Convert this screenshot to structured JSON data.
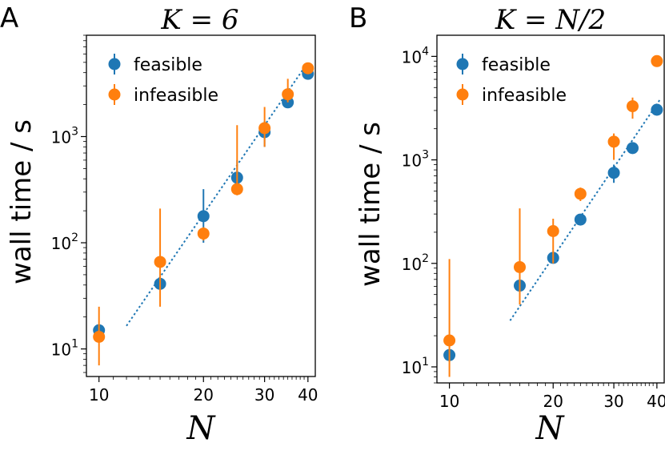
{
  "chart_data": [
    {
      "type": "scatter",
      "panel_letter": "A",
      "title": "K = 6",
      "xlabel": "N",
      "ylabel": "wall time / s",
      "xscale": "log",
      "yscale": "log",
      "xlim": [
        9.2,
        42
      ],
      "ylim": [
        5.5,
        9000
      ],
      "x_ticks": [
        10,
        20,
        30,
        40
      ],
      "y_ticks": [
        {
          "value": 10,
          "base": "10",
          "exp": "1"
        },
        {
          "value": 100,
          "base": "10",
          "exp": "2"
        },
        {
          "value": 1000,
          "base": "10",
          "exp": "3"
        }
      ],
      "legend": "top-left",
      "fit_line": {
        "x": [
          12,
          40
        ],
        "y": [
          16.5,
          5000
        ],
        "color": "#1f77b4",
        "style": "dotted"
      },
      "series": [
        {
          "name": "feasible",
          "color": "#1f77b4",
          "points": [
            {
              "x": 10,
              "y": 15,
              "lo": 13,
              "hi": 17
            },
            {
              "x": 15,
              "y": 41,
              "lo": 38,
              "hi": 44
            },
            {
              "x": 20,
              "y": 178,
              "lo": 100,
              "hi": 320
            },
            {
              "x": 25,
              "y": 410,
              "lo": 300,
              "hi": 600
            },
            {
              "x": 30,
              "y": 1100,
              "lo": 800,
              "hi": 1400
            },
            {
              "x": 35,
              "y": 2100,
              "lo": 1900,
              "hi": 2400
            },
            {
              "x": 40,
              "y": 3900,
              "lo": 3500,
              "hi": 4300
            }
          ]
        },
        {
          "name": "infeasible",
          "color": "#ff7f0e",
          "points": [
            {
              "x": 10,
              "y": 13,
              "lo": 7,
              "hi": 25
            },
            {
              "x": 15,
              "y": 66,
              "lo": 25,
              "hi": 210
            },
            {
              "x": 20,
              "y": 122,
              "lo": 105,
              "hi": 140
            },
            {
              "x": 25,
              "y": 320,
              "lo": 280,
              "hi": 1280
            },
            {
              "x": 30,
              "y": 1200,
              "lo": 800,
              "hi": 1900
            },
            {
              "x": 35,
              "y": 2500,
              "lo": 2100,
              "hi": 3500
            },
            {
              "x": 40,
              "y": 4400,
              "lo": 4000,
              "hi": 4900
            }
          ]
        }
      ]
    },
    {
      "type": "scatter",
      "panel_letter": "B",
      "title": "K = N/2",
      "xlabel": "N",
      "ylabel": "wall time / s",
      "xscale": "log",
      "yscale": "log",
      "xlim": [
        9.2,
        42
      ],
      "ylim": [
        7,
        16000
      ],
      "x_ticks": [
        10,
        20,
        30,
        40
      ],
      "y_ticks": [
        {
          "value": 10,
          "base": "10",
          "exp": "1"
        },
        {
          "value": 100,
          "base": "10",
          "exp": "2"
        },
        {
          "value": 1000,
          "base": "10",
          "exp": "3"
        },
        {
          "value": 10000,
          "base": "10",
          "exp": "4"
        }
      ],
      "legend": "top-left",
      "fit_line": {
        "x": [
          15,
          41
        ],
        "y": [
          28,
          3900
        ],
        "color": "#1f77b4",
        "style": "dotted"
      },
      "series": [
        {
          "name": "feasible",
          "color": "#1f77b4",
          "points": [
            {
              "x": 10,
              "y": 13,
              "lo": 12,
              "hi": 14
            },
            {
              "x": 16,
              "y": 61,
              "lo": 55,
              "hi": 68
            },
            {
              "x": 20,
              "y": 113,
              "lo": 100,
              "hi": 125
            },
            {
              "x": 24,
              "y": 265,
              "lo": 240,
              "hi": 290
            },
            {
              "x": 30,
              "y": 750,
              "lo": 600,
              "hi": 900
            },
            {
              "x": 34,
              "y": 1300,
              "lo": 1150,
              "hi": 1450
            },
            {
              "x": 40,
              "y": 3050,
              "lo": 2800,
              "hi": 3300
            }
          ]
        },
        {
          "name": "infeasible",
          "color": "#ff7f0e",
          "points": [
            {
              "x": 10,
              "y": 18,
              "lo": 8,
              "hi": 110
            },
            {
              "x": 16,
              "y": 92,
              "lo": 40,
              "hi": 340
            },
            {
              "x": 20,
              "y": 205,
              "lo": 100,
              "hi": 270
            },
            {
              "x": 24,
              "y": 470,
              "lo": 400,
              "hi": 540
            },
            {
              "x": 30,
              "y": 1500,
              "lo": 1000,
              "hi": 1800
            },
            {
              "x": 34,
              "y": 3300,
              "lo": 2500,
              "hi": 4000
            },
            {
              "x": 40,
              "y": 9000,
              "lo": 8200,
              "hi": 9800
            }
          ]
        }
      ]
    }
  ]
}
